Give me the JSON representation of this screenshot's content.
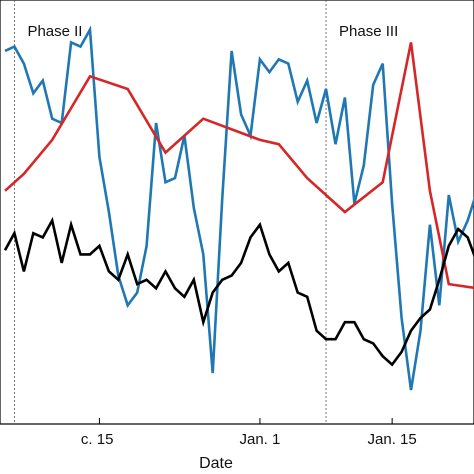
{
  "chart_data": {
    "type": "line",
    "xlabel": "Date",
    "ylabel": "",
    "x_axis": {
      "type": "date",
      "range": [
        "2013-12-05",
        "2014-01-24"
      ],
      "ticks": [
        {
          "date": "2013-12-15",
          "label": "c. 15"
        },
        {
          "date": "2014-01-01",
          "label": "Jan. 1"
        },
        {
          "date": "2014-01-15",
          "label": "Jan. 15"
        }
      ]
    },
    "y_axis": {
      "range": [
        0,
        1
      ],
      "ticks_visible": false
    },
    "grid": false,
    "phase_boundaries": [
      "2013-12-06",
      "2014-01-08"
    ],
    "phases": [
      {
        "label": "Phase II",
        "start": "2013-12-06"
      },
      {
        "label": "Phase III",
        "start": "2014-01-08"
      }
    ],
    "series": [
      {
        "color": "#1f78b4",
        "x": [
          "2013-12-05",
          "2013-12-06",
          "2013-12-07",
          "2013-12-08",
          "2013-12-09",
          "2013-12-10",
          "2013-12-11",
          "2013-12-12",
          "2013-12-13",
          "2013-12-14",
          "2013-12-15",
          "2013-12-16",
          "2013-12-17",
          "2013-12-18",
          "2013-12-19",
          "2013-12-20",
          "2013-12-21",
          "2013-12-22",
          "2013-12-23",
          "2013-12-24",
          "2013-12-25",
          "2013-12-26",
          "2013-12-27",
          "2013-12-28",
          "2013-12-29",
          "2013-12-30",
          "2013-12-31",
          "2014-01-01",
          "2014-01-02",
          "2014-01-03",
          "2014-01-04",
          "2014-01-05",
          "2014-01-06",
          "2014-01-07",
          "2014-01-08",
          "2014-01-09",
          "2014-01-10",
          "2014-01-11",
          "2014-01-12",
          "2014-01-13",
          "2014-01-14",
          "2014-01-15",
          "2014-01-16",
          "2014-01-17",
          "2014-01-18",
          "2014-01-19",
          "2014-01-20",
          "2014-01-21",
          "2014-01-22",
          "2014-01-23",
          "2014-01-24"
        ],
        "values": [
          0.88,
          0.89,
          0.85,
          0.78,
          0.81,
          0.72,
          0.71,
          0.9,
          0.89,
          0.93,
          0.63,
          0.5,
          0.35,
          0.28,
          0.31,
          0.42,
          0.71,
          0.57,
          0.58,
          0.68,
          0.51,
          0.4,
          0.12,
          0.53,
          0.88,
          0.73,
          0.68,
          0.86,
          0.83,
          0.86,
          0.85,
          0.76,
          0.81,
          0.71,
          0.79,
          0.66,
          0.77,
          0.52,
          0.61,
          0.8,
          0.85,
          0.52,
          0.25,
          0.08,
          0.22,
          0.47,
          0.28,
          0.54,
          0.43,
          0.48,
          0.55
        ]
      },
      {
        "color": "#d62728",
        "x": [
          "2013-12-05",
          "2013-12-07",
          "2013-12-10",
          "2013-12-14",
          "2013-12-18",
          "2013-12-22",
          "2013-12-26",
          "2014-01-01",
          "2014-01-03",
          "2014-01-06",
          "2014-01-10",
          "2014-01-14",
          "2014-01-17",
          "2014-01-19",
          "2014-01-21",
          "2014-01-24"
        ],
        "values": [
          0.55,
          0.59,
          0.67,
          0.82,
          0.79,
          0.64,
          0.72,
          0.67,
          0.66,
          0.58,
          0.5,
          0.57,
          0.9,
          0.55,
          0.33,
          0.32
        ]
      },
      {
        "color": "#000000",
        "x": [
          "2013-12-05",
          "2013-12-06",
          "2013-12-07",
          "2013-12-08",
          "2013-12-09",
          "2013-12-10",
          "2013-12-11",
          "2013-12-12",
          "2013-12-13",
          "2013-12-14",
          "2013-12-15",
          "2013-12-16",
          "2013-12-17",
          "2013-12-18",
          "2013-12-19",
          "2013-12-20",
          "2013-12-21",
          "2013-12-22",
          "2013-12-23",
          "2013-12-24",
          "2013-12-25",
          "2013-12-26",
          "2013-12-27",
          "2013-12-28",
          "2013-12-29",
          "2013-12-30",
          "2013-12-31",
          "2014-01-01",
          "2014-01-02",
          "2014-01-03",
          "2014-01-04",
          "2014-01-05",
          "2014-01-06",
          "2014-01-07",
          "2014-01-08",
          "2014-01-09",
          "2014-01-10",
          "2014-01-11",
          "2014-01-12",
          "2014-01-13",
          "2014-01-14",
          "2014-01-15",
          "2014-01-16",
          "2014-01-17",
          "2014-01-18",
          "2014-01-19",
          "2014-01-20",
          "2014-01-21",
          "2014-01-22",
          "2014-01-23",
          "2014-01-24"
        ],
        "values": [
          0.41,
          0.45,
          0.36,
          0.45,
          0.44,
          0.48,
          0.38,
          0.47,
          0.4,
          0.4,
          0.42,
          0.36,
          0.34,
          0.4,
          0.33,
          0.34,
          0.32,
          0.36,
          0.32,
          0.3,
          0.34,
          0.24,
          0.31,
          0.34,
          0.35,
          0.38,
          0.44,
          0.47,
          0.4,
          0.36,
          0.38,
          0.31,
          0.3,
          0.22,
          0.2,
          0.2,
          0.24,
          0.24,
          0.2,
          0.19,
          0.16,
          0.14,
          0.17,
          0.22,
          0.25,
          0.27,
          0.34,
          0.42,
          0.46,
          0.44,
          0.38
        ]
      }
    ]
  }
}
